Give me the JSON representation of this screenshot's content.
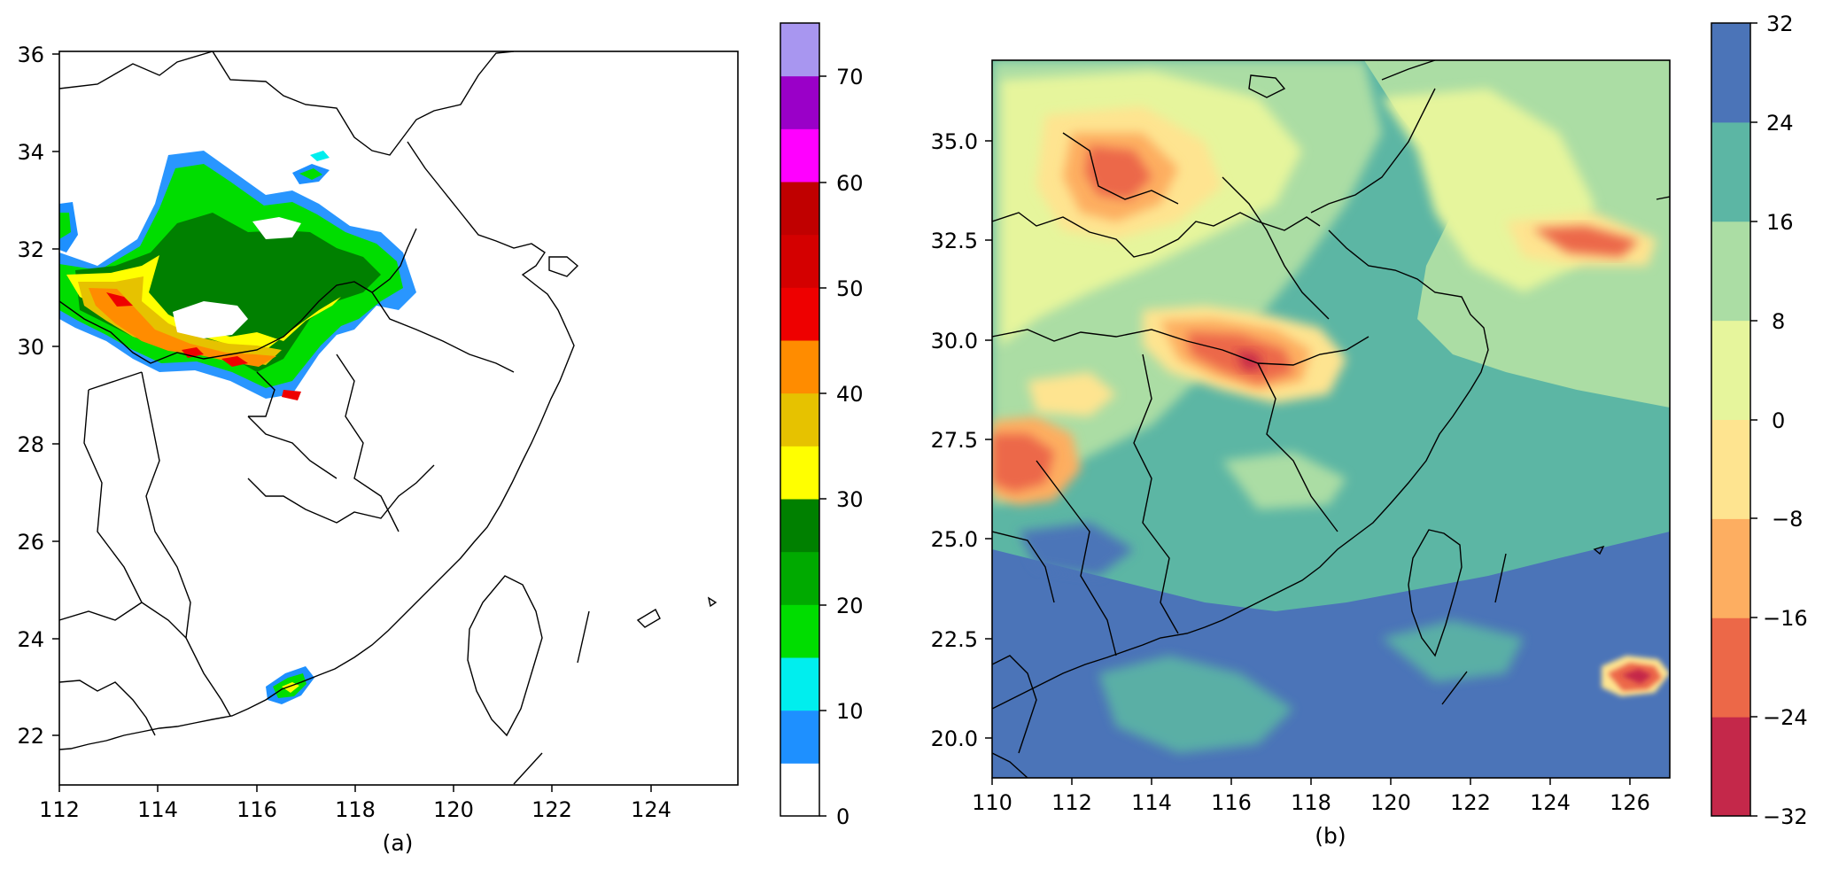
{
  "panel_a": {
    "caption": "(a)",
    "x_ticks": [
      "112",
      "114",
      "116",
      "118",
      "120",
      "122",
      "124"
    ],
    "y_ticks": [
      "22",
      "24",
      "26",
      "28",
      "30",
      "32",
      "34",
      "36"
    ],
    "colorbar": {
      "tick_labels": [
        "0",
        "10",
        "20",
        "30",
        "40",
        "50",
        "60",
        "70"
      ],
      "colors": [
        "#ffffff",
        "#1e90ff",
        "#00eeee",
        "#00dd00",
        "#00aa00",
        "#008000",
        "#ffff00",
        "#e6c200",
        "#ff8c00",
        "#ee0000",
        "#d40000",
        "#c00000",
        "#ff00ff",
        "#9a00c8",
        "#a896f0"
      ]
    }
  },
  "panel_b": {
    "caption": "(b)",
    "x_ticks": [
      "110",
      "112",
      "114",
      "116",
      "118",
      "120",
      "122",
      "124",
      "126"
    ],
    "y_ticks": [
      "20.0",
      "22.5",
      "25.0",
      "27.5",
      "30.0",
      "32.5",
      "35.0"
    ],
    "colorbar": {
      "tick_labels": [
        "−32",
        "−24",
        "−16",
        "−8",
        "0",
        "8",
        "16",
        "24",
        "32"
      ],
      "colors": [
        "#c4284a",
        "#ec6848",
        "#fdae61",
        "#fee490",
        "#e6f59c",
        "#abdda4",
        "#5cb6a4",
        "#4b74b8"
      ]
    }
  }
}
